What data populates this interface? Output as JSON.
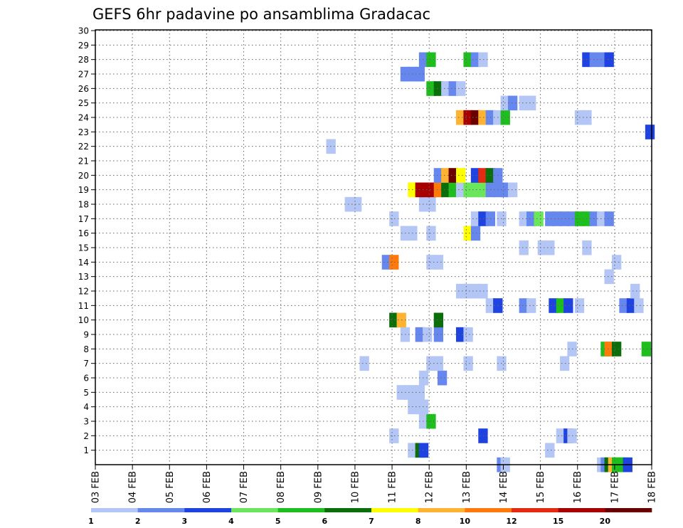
{
  "chart_data": {
    "type": "heatmap",
    "title": "GEFS 6hr padavine po ansamblima Gradacac",
    "x_tick_labels": [
      "03 FEB",
      "04 FEB",
      "05 FEB",
      "06 FEB",
      "07 FEB",
      "08 FEB",
      "09 FEB",
      "10 FEB",
      "11 FEB",
      "12 FEB",
      "13 FEB",
      "14 FEB",
      "15 FEB",
      "16 FEB",
      "17 FEB",
      "18 FEB"
    ],
    "y_tick_labels": [
      "1",
      "2",
      "3",
      "4",
      "5",
      "6",
      "7",
      "8",
      "9",
      "10",
      "11",
      "12",
      "13",
      "14",
      "15",
      "16",
      "17",
      "18",
      "19",
      "20",
      "21",
      "22",
      "23",
      "24",
      "25",
      "26",
      "27",
      "28",
      "29",
      "30"
    ],
    "x_range_days": [
      3,
      18
    ],
    "y_range": [
      0,
      30
    ],
    "grid": true,
    "legend": {
      "placement": "bottom",
      "labels": [
        "1",
        "2",
        "3",
        "4",
        "5",
        "6",
        "7",
        "8",
        "10",
        "12",
        "15",
        "20"
      ],
      "colors": [
        "#b3c6f5",
        "#6688ee",
        "#1f43e0",
        "#6ae65a",
        "#1ebe1e",
        "#0a6e0a",
        "#ffff00",
        "#ffb330",
        "#ff7a0a",
        "#e62a12",
        "#a80000",
        "#6b0000"
      ]
    },
    "cells": [
      {
        "day": 16.65,
        "member": 0,
        "bin": 1
      },
      {
        "day": 16.75,
        "member": 0,
        "bin": 2
      },
      {
        "day": 16.85,
        "member": 0,
        "bin": 6
      },
      {
        "day": 16.95,
        "member": 0,
        "bin": 8
      },
      {
        "day": 17.05,
        "member": 0,
        "bin": 5
      },
      {
        "day": 17.15,
        "member": 0,
        "bin": 5
      },
      {
        "day": 17.25,
        "member": 0,
        "bin": 5
      },
      {
        "day": 17.35,
        "member": 0,
        "bin": 3
      },
      {
        "day": 13.95,
        "member": 0,
        "bin": 2
      },
      {
        "day": 14.05,
        "member": 0,
        "bin": 1
      },
      {
        "day": 11.55,
        "member": 1,
        "bin": 1
      },
      {
        "day": 11.75,
        "member": 1,
        "bin": 6
      },
      {
        "day": 11.85,
        "member": 1,
        "bin": 3
      },
      {
        "day": 15.25,
        "member": 1,
        "bin": 1
      },
      {
        "day": 11.05,
        "member": 2,
        "bin": 1
      },
      {
        "day": 13.45,
        "member": 2,
        "bin": 3
      },
      {
        "day": 15.55,
        "member": 2,
        "bin": 1
      },
      {
        "day": 15.75,
        "member": 2,
        "bin": 3
      },
      {
        "day": 15.85,
        "member": 2,
        "bin": 1
      },
      {
        "day": 11.85,
        "member": 3,
        "bin": 1
      },
      {
        "day": 12.05,
        "member": 3,
        "bin": 5
      },
      {
        "day": 11.55,
        "member": 4,
        "bin": 1
      },
      {
        "day": 11.75,
        "member": 4,
        "bin": 1
      },
      {
        "day": 11.85,
        "member": 4,
        "bin": 1
      },
      {
        "day": 11.25,
        "member": 5,
        "bin": 1
      },
      {
        "day": 11.45,
        "member": 5,
        "bin": 1
      },
      {
        "day": 11.55,
        "member": 5,
        "bin": 1
      },
      {
        "day": 11.75,
        "member": 5,
        "bin": 1
      },
      {
        "day": 11.85,
        "member": 6,
        "bin": 1
      },
      {
        "day": 12.35,
        "member": 6,
        "bin": 2
      },
      {
        "day": 10.25,
        "member": 7,
        "bin": 1
      },
      {
        "day": 12.05,
        "member": 7,
        "bin": 1
      },
      {
        "day": 12.25,
        "member": 7,
        "bin": 1
      },
      {
        "day": 13.05,
        "member": 7,
        "bin": 1
      },
      {
        "day": 13.95,
        "member": 7,
        "bin": 1
      },
      {
        "day": 15.65,
        "member": 7,
        "bin": 1
      },
      {
        "day": 15.85,
        "member": 8,
        "bin": 1
      },
      {
        "day": 16.75,
        "member": 8,
        "bin": 5
      },
      {
        "day": 16.85,
        "member": 8,
        "bin": 9
      },
      {
        "day": 17.05,
        "member": 8,
        "bin": 6
      },
      {
        "day": 17.85,
        "member": 8,
        "bin": 5
      },
      {
        "day": 11.35,
        "member": 9,
        "bin": 1
      },
      {
        "day": 11.75,
        "member": 9,
        "bin": 2
      },
      {
        "day": 11.95,
        "member": 9,
        "bin": 1
      },
      {
        "day": 12.25,
        "member": 9,
        "bin": 2
      },
      {
        "day": 12.85,
        "member": 9,
        "bin": 3
      },
      {
        "day": 13.05,
        "member": 9,
        "bin": 1
      },
      {
        "day": 11.05,
        "member": 10,
        "bin": 6
      },
      {
        "day": 11.25,
        "member": 10,
        "bin": 8
      },
      {
        "day": 12.25,
        "member": 10,
        "bin": 6
      },
      {
        "day": 13.65,
        "member": 11,
        "bin": 1
      },
      {
        "day": 13.85,
        "member": 11,
        "bin": 3
      },
      {
        "day": 14.55,
        "member": 11,
        "bin": 2
      },
      {
        "day": 14.75,
        "member": 11,
        "bin": 1
      },
      {
        "day": 15.35,
        "member": 11,
        "bin": 3
      },
      {
        "day": 15.55,
        "member": 11,
        "bin": 5
      },
      {
        "day": 15.75,
        "member": 11,
        "bin": 3
      },
      {
        "day": 16.05,
        "member": 11,
        "bin": 1
      },
      {
        "day": 17.25,
        "member": 11,
        "bin": 2
      },
      {
        "day": 17.45,
        "member": 11,
        "bin": 3
      },
      {
        "day": 17.65,
        "member": 11,
        "bin": 1
      },
      {
        "day": 12.85,
        "member": 12,
        "bin": 1
      },
      {
        "day": 13.05,
        "member": 12,
        "bin": 1
      },
      {
        "day": 13.25,
        "member": 12,
        "bin": 1
      },
      {
        "day": 13.45,
        "member": 12,
        "bin": 1
      },
      {
        "day": 17.55,
        "member": 12,
        "bin": 1
      },
      {
        "day": 16.85,
        "member": 13,
        "bin": 1
      },
      {
        "day": 10.85,
        "member": 14,
        "bin": 2
      },
      {
        "day": 11.05,
        "member": 14,
        "bin": 9
      },
      {
        "day": 12.05,
        "member": 14,
        "bin": 1
      },
      {
        "day": 12.25,
        "member": 14,
        "bin": 1
      },
      {
        "day": 17.05,
        "member": 14,
        "bin": 1
      },
      {
        "day": 14.55,
        "member": 15,
        "bin": 1
      },
      {
        "day": 15.05,
        "member": 15,
        "bin": 1
      },
      {
        "day": 15.25,
        "member": 15,
        "bin": 1
      },
      {
        "day": 16.25,
        "member": 15,
        "bin": 1
      },
      {
        "day": 11.35,
        "member": 16,
        "bin": 1
      },
      {
        "day": 11.55,
        "member": 16,
        "bin": 1
      },
      {
        "day": 12.05,
        "member": 16,
        "bin": 1
      },
      {
        "day": 13.05,
        "member": 16,
        "bin": 7
      },
      {
        "day": 13.25,
        "member": 16,
        "bin": 2
      },
      {
        "day": 11.05,
        "member": 17,
        "bin": 1
      },
      {
        "day": 13.25,
        "member": 17,
        "bin": 1
      },
      {
        "day": 13.45,
        "member": 17,
        "bin": 3
      },
      {
        "day": 13.65,
        "member": 17,
        "bin": 2
      },
      {
        "day": 13.95,
        "member": 17,
        "bin": 1
      },
      {
        "day": 14.55,
        "member": 17,
        "bin": 1
      },
      {
        "day": 14.75,
        "member": 17,
        "bin": 2
      },
      {
        "day": 14.95,
        "member": 17,
        "bin": 4
      },
      {
        "day": 15.25,
        "member": 17,
        "bin": 2
      },
      {
        "day": 15.45,
        "member": 17,
        "bin": 2
      },
      {
        "day": 15.65,
        "member": 17,
        "bin": 2
      },
      {
        "day": 15.85,
        "member": 17,
        "bin": 2
      },
      {
        "day": 16.05,
        "member": 17,
        "bin": 5
      },
      {
        "day": 16.25,
        "member": 17,
        "bin": 5
      },
      {
        "day": 16.45,
        "member": 17,
        "bin": 2
      },
      {
        "day": 16.65,
        "member": 17,
        "bin": 1
      },
      {
        "day": 16.85,
        "member": 17,
        "bin": 2
      },
      {
        "day": 9.85,
        "member": 18,
        "bin": 1
      },
      {
        "day": 10.05,
        "member": 18,
        "bin": 1
      },
      {
        "day": 11.85,
        "member": 18,
        "bin": 1
      },
      {
        "day": 12.05,
        "member": 18,
        "bin": 1
      },
      {
        "day": 11.55,
        "member": 19,
        "bin": 7
      },
      {
        "day": 11.75,
        "member": 19,
        "bin": 11
      },
      {
        "day": 11.85,
        "member": 19,
        "bin": 11
      },
      {
        "day": 12.05,
        "member": 19,
        "bin": 11
      },
      {
        "day": 12.25,
        "member": 19,
        "bin": 9
      },
      {
        "day": 12.45,
        "member": 19,
        "bin": 6
      },
      {
        "day": 12.65,
        "member": 19,
        "bin": 5
      },
      {
        "day": 12.85,
        "member": 19,
        "bin": 1
      },
      {
        "day": 13.05,
        "member": 19,
        "bin": 4
      },
      {
        "day": 13.25,
        "member": 19,
        "bin": 4
      },
      {
        "day": 13.45,
        "member": 19,
        "bin": 4
      },
      {
        "day": 13.65,
        "member": 19,
        "bin": 2
      },
      {
        "day": 13.85,
        "member": 19,
        "bin": 2
      },
      {
        "day": 14.05,
        "member": 19,
        "bin": 2
      },
      {
        "day": 14.25,
        "member": 19,
        "bin": 1
      },
      {
        "day": 12.25,
        "member": 20,
        "bin": 2
      },
      {
        "day": 12.45,
        "member": 20,
        "bin": 8
      },
      {
        "day": 12.65,
        "member": 20,
        "bin": 12
      },
      {
        "day": 12.85,
        "member": 20,
        "bin": 7
      },
      {
        "day": 13.25,
        "member": 20,
        "bin": 3
      },
      {
        "day": 13.45,
        "member": 20,
        "bin": 10
      },
      {
        "day": 13.65,
        "member": 20,
        "bin": 6
      },
      {
        "day": 13.85,
        "member": 20,
        "bin": 2
      },
      {
        "day": 9.35,
        "member": 22,
        "bin": 1
      },
      {
        "day": 17.95,
        "member": 23,
        "bin": 3
      },
      {
        "day": 12.85,
        "member": 24,
        "bin": 8
      },
      {
        "day": 13.05,
        "member": 24,
        "bin": 11
      },
      {
        "day": 13.25,
        "member": 24,
        "bin": 12
      },
      {
        "day": 13.45,
        "member": 24,
        "bin": 8
      },
      {
        "day": 13.65,
        "member": 24,
        "bin": 2
      },
      {
        "day": 13.85,
        "member": 24,
        "bin": 1
      },
      {
        "day": 14.05,
        "member": 24,
        "bin": 5
      },
      {
        "day": 16.05,
        "member": 24,
        "bin": 1
      },
      {
        "day": 16.25,
        "member": 24,
        "bin": 1
      },
      {
        "day": 14.05,
        "member": 25,
        "bin": 1
      },
      {
        "day": 14.25,
        "member": 25,
        "bin": 2
      },
      {
        "day": 14.55,
        "member": 25,
        "bin": 1
      },
      {
        "day": 14.75,
        "member": 25,
        "bin": 1
      },
      {
        "day": 12.05,
        "member": 26,
        "bin": 5
      },
      {
        "day": 12.25,
        "member": 26,
        "bin": 6
      },
      {
        "day": 12.45,
        "member": 26,
        "bin": 1
      },
      {
        "day": 12.65,
        "member": 26,
        "bin": 2
      },
      {
        "day": 12.85,
        "member": 26,
        "bin": 1
      },
      {
        "day": 11.35,
        "member": 27,
        "bin": 2
      },
      {
        "day": 11.55,
        "member": 27,
        "bin": 2
      },
      {
        "day": 11.75,
        "member": 27,
        "bin": 2
      },
      {
        "day": 11.85,
        "member": 28,
        "bin": 2
      },
      {
        "day": 12.05,
        "member": 28,
        "bin": 5
      },
      {
        "day": 13.05,
        "member": 28,
        "bin": 5
      },
      {
        "day": 13.25,
        "member": 28,
        "bin": 2
      },
      {
        "day": 13.45,
        "member": 28,
        "bin": 1
      },
      {
        "day": 16.25,
        "member": 28,
        "bin": 3
      },
      {
        "day": 16.45,
        "member": 28,
        "bin": 2
      },
      {
        "day": 16.65,
        "member": 28,
        "bin": 2
      },
      {
        "day": 16.85,
        "member": 28,
        "bin": 3
      }
    ]
  }
}
